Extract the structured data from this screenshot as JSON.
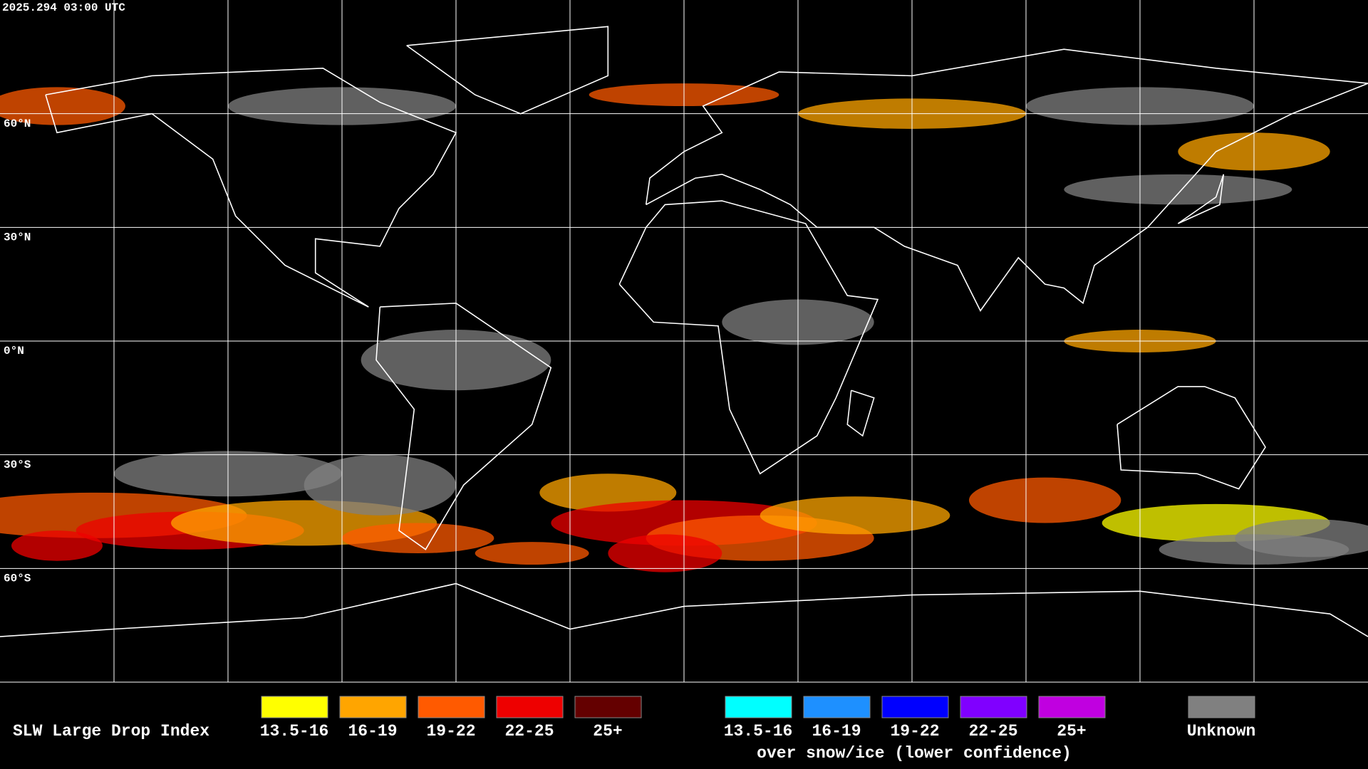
{
  "header": {
    "timestamp": "2025.294 03:00 UTC"
  },
  "map": {
    "lat_labels": [
      "60°N",
      "30°N",
      "0°N",
      "30°S",
      "60°S"
    ]
  },
  "legend": {
    "title": "SLW Large Drop Index",
    "normal": [
      {
        "label": "13.5-16",
        "color": "#ffff00"
      },
      {
        "label": "16-19",
        "color": "#ffa500"
      },
      {
        "label": "19-22",
        "color": "#ff5a00"
      },
      {
        "label": "22-25",
        "color": "#ee0000"
      },
      {
        "label": "25+",
        "color": "#640000"
      }
    ],
    "snow": [
      {
        "label": "13.5-16",
        "color": "#00ffff"
      },
      {
        "label": "16-19",
        "color": "#1e90ff"
      },
      {
        "label": "19-22",
        "color": "#0000ff"
      },
      {
        "label": "22-25",
        "color": "#8000ff"
      },
      {
        "label": "25+",
        "color": "#c000e0"
      }
    ],
    "snow_note": "over snow/ice (lower confidence)",
    "unknown": {
      "label": "Unknown",
      "color": "#808080"
    }
  }
}
